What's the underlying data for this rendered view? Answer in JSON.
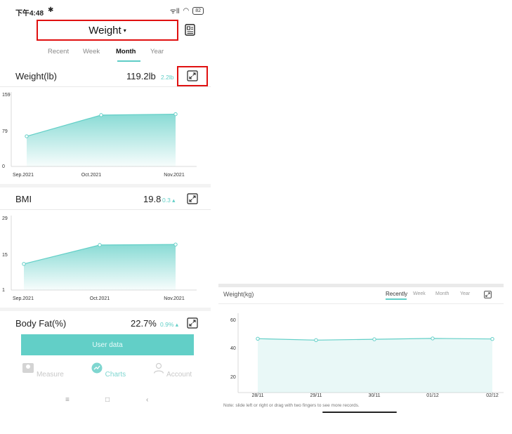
{
  "status_bar": {
    "time": "下午4:48",
    "bluetooth": "✱",
    "signal": "ᯤll",
    "wifi": "◠",
    "battery": "82"
  },
  "header": {
    "title": "Weight",
    "caret": "▾"
  },
  "period_tabs": [
    {
      "label": "Recent",
      "active": false
    },
    {
      "label": "Week",
      "active": false
    },
    {
      "label": "Month",
      "active": true
    },
    {
      "label": "Year",
      "active": false
    }
  ],
  "metrics": [
    {
      "name": "Weight(lb)",
      "value": "119.2lb",
      "delta": "2.2lb"
    },
    {
      "name": "BMI",
      "value": "19.8",
      "delta": "0.3 ▴"
    },
    {
      "name": "Body Fat(%)",
      "value": "22.7%",
      "delta": "0.9% ▴"
    }
  ],
  "chart_data": [
    {
      "type": "area",
      "title": "Weight(lb)",
      "categories": [
        "Sep.2021",
        "Oct.2021",
        "Nov.2021"
      ],
      "x": [
        0,
        1,
        2
      ],
      "values": [
        67,
        114,
        116
      ],
      "y_ticks": [
        "159",
        "79",
        "0"
      ],
      "ylim": [
        0,
        159
      ]
    },
    {
      "type": "area",
      "title": "BMI",
      "categories": [
        "Sep.2021",
        "Oct.2021",
        "Nov.2021"
      ],
      "x": [
        0,
        1,
        2
      ],
      "values": [
        11.2,
        18.6,
        18.8
      ],
      "y_ticks": [
        "29",
        "15",
        "1"
      ],
      "ylim": [
        1,
        29
      ]
    },
    {
      "type": "area",
      "title": "Weight(kg)",
      "categories": [
        "28/11",
        "29/11",
        "30/11",
        "01/12",
        "02/12"
      ],
      "values": [
        50,
        49,
        49.6,
        50.2,
        49.8
      ],
      "y_ticks": [
        "60",
        "40",
        "20"
      ],
      "ylim": [
        12,
        66
      ]
    }
  ],
  "user_data_button": "User data",
  "bottom_nav": [
    {
      "label": "Measure",
      "active": false,
      "icon": "scale-icon"
    },
    {
      "label": "Charts",
      "active": true,
      "icon": "chart-icon"
    },
    {
      "label": "Account",
      "active": false,
      "icon": "person-icon"
    }
  ],
  "system_nav": {
    "menu": "≡",
    "home": "□",
    "back": "‹"
  },
  "right_panel": {
    "title": "Weight(kg)",
    "tabs": [
      {
        "label": "Recently",
        "active": true
      },
      {
        "label": "Week",
        "active": false
      },
      {
        "label": "Month",
        "active": false
      },
      {
        "label": "Year",
        "active": false
      }
    ],
    "note": "Note: slide left or right or drag with two fingers to see more records."
  },
  "colors": {
    "accent": "#62cfc7",
    "highlight_box": "#e01010"
  }
}
